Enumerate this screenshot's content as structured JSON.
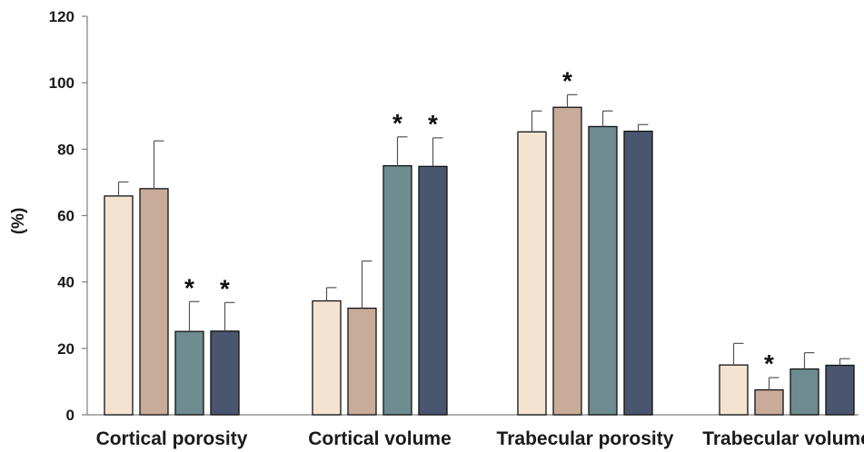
{
  "chart_data": {
    "type": "bar",
    "title": "",
    "xlabel": "",
    "ylabel": "(%)",
    "ylim": [
      0,
      120
    ],
    "yticks": [
      0,
      20,
      40,
      60,
      80,
      100,
      120
    ],
    "grid": false,
    "legend": "none",
    "categories": [
      "Cortical porosity",
      "Cortical volume",
      "Trabecular porosity",
      "Trabecular volume"
    ],
    "series": [
      {
        "color": "#f5e3d1",
        "values": [
          65.9,
          34.3,
          85.2,
          15.0
        ],
        "errors": [
          4.2,
          4.0,
          6.3,
          6.5
        ],
        "significant": [
          "",
          "",
          "",
          ""
        ]
      },
      {
        "color": "#c8ab99",
        "values": [
          68.1,
          32.1,
          92.6,
          7.5
        ],
        "errors": [
          14.4,
          14.2,
          3.8,
          3.7
        ],
        "significant": [
          "",
          "",
          "*",
          "*"
        ]
      },
      {
        "color": "#6e8b8f",
        "values": [
          25.1,
          75.0,
          86.8,
          13.8
        ],
        "errors": [
          9.0,
          8.7,
          4.7,
          4.9
        ],
        "significant": [
          "*",
          "*",
          "",
          ""
        ]
      },
      {
        "color": "#4a5670",
        "values": [
          25.2,
          74.8,
          85.4,
          14.9
        ],
        "errors": [
          8.6,
          8.6,
          2.0,
          2.0
        ],
        "significant": [
          "*",
          "*",
          "",
          ""
        ]
      }
    ]
  }
}
